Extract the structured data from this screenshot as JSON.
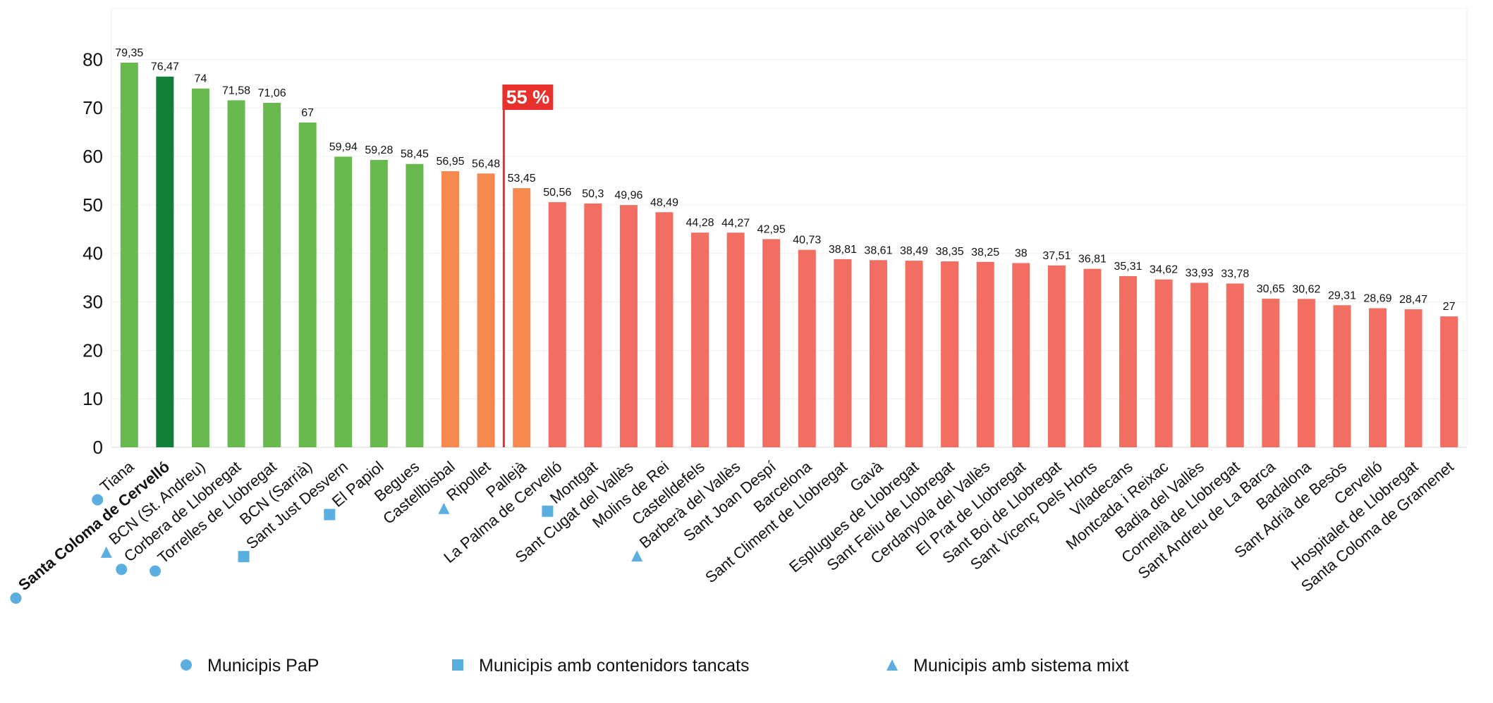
{
  "chart_data": {
    "type": "bar",
    "categories": [
      "Tiana",
      "Santa Coloma de Cervelló",
      "BCN (St. Andreu)",
      "Corbera de Llobregat",
      "Torrelles de Llobregat",
      "BCN (Sarrià)",
      "Sant Just Desvern",
      "El Papiol",
      "Begues",
      "Castellbisbal",
      "Ripollet",
      "Pallejà",
      "La Palma de Cervelló",
      "Montgat",
      "Sant Cugat del Vallès",
      "Molins de Rei",
      "Castelldefels",
      "Barberà del Vallès",
      "Sant Joan Despí",
      "Barcelona",
      "Sant Climent de Llobregat",
      "Gavà",
      "Esplugues de Llobregat",
      "Sant Feliu de Llobregat",
      "Cerdanyola del Vallès",
      "El Prat de Llobregat",
      "Sant Boi de Llobregat",
      "Sant Vicenç Dels Horts",
      "Viladecans",
      "Montcada i Reixac",
      "Badia del Vallès",
      "Cornellà de Llobregat",
      "Sant Andreu de La Barca",
      "Badalona",
      "Sant Adrià de Besòs",
      "Cervelló",
      "Hospitalet de Llobregat",
      "Santa Coloma de Gramenet"
    ],
    "values": [
      79.35,
      76.47,
      74,
      71.58,
      71.06,
      67,
      59.94,
      59.28,
      58.45,
      56.95,
      56.48,
      53.45,
      50.56,
      50.3,
      49.96,
      48.49,
      44.28,
      44.27,
      42.95,
      40.73,
      38.81,
      38.61,
      38.49,
      38.35,
      38.25,
      38,
      37.51,
      36.81,
      35.31,
      34.62,
      33.93,
      33.78,
      30.65,
      30.62,
      29.31,
      28.69,
      28.47,
      27
    ],
    "value_labels": [
      "79,35",
      "76,47",
      "74",
      "71,58",
      "71,06",
      "67",
      "59,94",
      "59,28",
      "58,45",
      "56,95",
      "56,48",
      "53,45",
      "50,56",
      "50,3",
      "49,96",
      "48,49",
      "44,28",
      "44,27",
      "42,95",
      "40,73",
      "38,81",
      "38,61",
      "38,49",
      "38,35",
      "38,25",
      "38",
      "37,51",
      "36,81",
      "35,31",
      "34,62",
      "33,93",
      "33,78",
      "30,65",
      "30,62",
      "29,31",
      "28,69",
      "28,47",
      "27"
    ],
    "bar_colors": [
      "#6ab94f",
      "#138039",
      "#6ab94f",
      "#6ab94f",
      "#6ab94f",
      "#6ab94f",
      "#6ab94f",
      "#6ab94f",
      "#6ab94f",
      "#f6894e",
      "#f6894e",
      "#f6894e",
      "#f26d62",
      "#f26d62",
      "#f26d62",
      "#f26d62",
      "#f26d62",
      "#f26d62",
      "#f26d62",
      "#f26d62",
      "#f26d62",
      "#f26d62",
      "#f26d62",
      "#f26d62",
      "#f26d62",
      "#f26d62",
      "#f26d62",
      "#f26d62",
      "#f26d62",
      "#f26d62",
      "#f26d62",
      "#f26d62",
      "#f26d62",
      "#f26d62",
      "#f26d62",
      "#f26d62",
      "#f26d62",
      "#f26d62"
    ],
    "highlight_category": "Santa Coloma de Cervelló",
    "category_markers": {
      "Tiana": "circle",
      "Santa Coloma de Cervelló": "circle",
      "BCN (St. Andreu)": "triangle",
      "Corbera de Llobregat": "circle",
      "Torrelles de Llobregat": "circle",
      "Sant Just Desvern": "square",
      "El Papiol": "square",
      "Ripollet": "triangle",
      "Montgat": "square",
      "Barberà del Vallès": "triangle"
    },
    "marker_color": "#5aaee0",
    "threshold": {
      "value": 55,
      "label": "55 %",
      "color": "#e8312c"
    },
    "ylim": [
      0,
      85
    ],
    "yticks": [
      0,
      10,
      20,
      30,
      40,
      50,
      60,
      70,
      80
    ],
    "grid": true,
    "title": "",
    "xlabel": "",
    "ylabel": "",
    "legend": {
      "placement": "bottom",
      "entries": [
        {
          "marker": "circle",
          "label": "Municipis PaP"
        },
        {
          "marker": "square",
          "label": "Municipis amb contenidors tancats"
        },
        {
          "marker": "triangle",
          "label": "Municipis amb sistema mixt"
        }
      ]
    }
  }
}
